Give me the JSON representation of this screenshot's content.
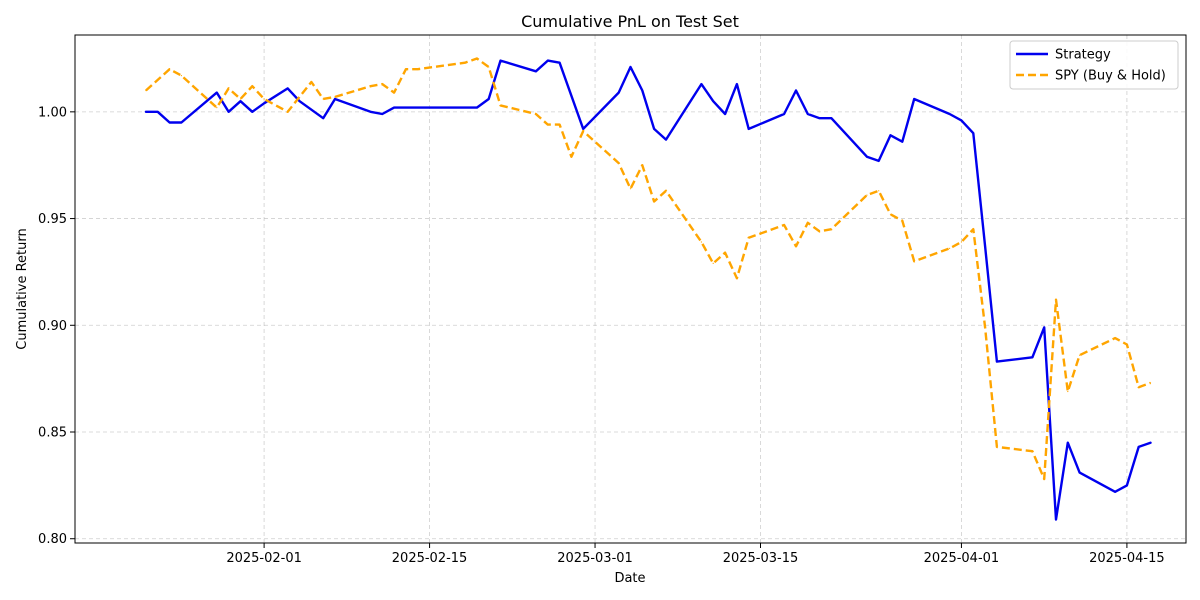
{
  "chart_data": {
    "type": "line",
    "title": "Cumulative PnL on Test Set",
    "xlabel": "Date",
    "ylabel": "Cumulative Return",
    "x_range": [
      "2025-01-16",
      "2025-04-20"
    ],
    "ylim": [
      0.798,
      1.036
    ],
    "x_ticks": [
      "2025-02-01",
      "2025-02-15",
      "2025-03-01",
      "2025-03-15",
      "2025-04-01",
      "2025-04-15"
    ],
    "y_ticks": [
      0.8,
      0.85,
      0.9,
      0.95,
      1.0
    ],
    "y_tick_labels": [
      "0.80",
      "0.85",
      "0.90",
      "0.95",
      "1.00"
    ],
    "grid": true,
    "legend_position": "top-right",
    "series": [
      {
        "name": "Strategy",
        "color": "#0000ee",
        "style": "solid",
        "points": [
          [
            "2025-01-22",
            1.0
          ],
          [
            "2025-01-23",
            1.0
          ],
          [
            "2025-01-24",
            0.995
          ],
          [
            "2025-01-25",
            0.995
          ],
          [
            "2025-01-28",
            1.009
          ],
          [
            "2025-01-29",
            1.0
          ],
          [
            "2025-01-30",
            1.005
          ],
          [
            "2025-01-31",
            1.0
          ],
          [
            "2025-02-01",
            1.004
          ],
          [
            "2025-02-03",
            1.011
          ],
          [
            "2025-02-04",
            1.005
          ],
          [
            "2025-02-06",
            0.997
          ],
          [
            "2025-02-07",
            1.006
          ],
          [
            "2025-02-10",
            1.0
          ],
          [
            "2025-02-11",
            0.999
          ],
          [
            "2025-02-12",
            1.002
          ],
          [
            "2025-02-19",
            1.002
          ],
          [
            "2025-02-20",
            1.006
          ],
          [
            "2025-02-21",
            1.024
          ],
          [
            "2025-02-24",
            1.019
          ],
          [
            "2025-02-25",
            1.024
          ],
          [
            "2025-02-26",
            1.023
          ],
          [
            "2025-02-28",
            0.992
          ],
          [
            "2025-03-03",
            1.009
          ],
          [
            "2025-03-04",
            1.021
          ],
          [
            "2025-03-05",
            1.01
          ],
          [
            "2025-03-06",
            0.992
          ],
          [
            "2025-03-07",
            0.987
          ],
          [
            "2025-03-10",
            1.013
          ],
          [
            "2025-03-11",
            1.005
          ],
          [
            "2025-03-12",
            0.999
          ],
          [
            "2025-03-13",
            1.013
          ],
          [
            "2025-03-14",
            0.992
          ],
          [
            "2025-03-17",
            0.999
          ],
          [
            "2025-03-18",
            1.01
          ],
          [
            "2025-03-19",
            0.999
          ],
          [
            "2025-03-20",
            0.997
          ],
          [
            "2025-03-21",
            0.997
          ],
          [
            "2025-03-24",
            0.979
          ],
          [
            "2025-03-25",
            0.977
          ],
          [
            "2025-03-26",
            0.989
          ],
          [
            "2025-03-27",
            0.986
          ],
          [
            "2025-03-28",
            1.006
          ],
          [
            "2025-03-31",
            0.999
          ],
          [
            "2025-04-01",
            0.996
          ],
          [
            "2025-04-02",
            0.99
          ],
          [
            "2025-04-03",
            0.937
          ],
          [
            "2025-04-04",
            0.883
          ],
          [
            "2025-04-07",
            0.885
          ],
          [
            "2025-04-08",
            0.899
          ],
          [
            "2025-04-09",
            0.809
          ],
          [
            "2025-04-10",
            0.845
          ],
          [
            "2025-04-11",
            0.831
          ],
          [
            "2025-04-14",
            0.822
          ],
          [
            "2025-04-15",
            0.825
          ],
          [
            "2025-04-16",
            0.843
          ],
          [
            "2025-04-17",
            0.845
          ]
        ]
      },
      {
        "name": "SPY (Buy & Hold)",
        "color": "#ffa500",
        "style": "dashed",
        "points": [
          [
            "2025-01-22",
            1.01
          ],
          [
            "2025-01-24",
            1.02
          ],
          [
            "2025-01-25",
            1.017
          ],
          [
            "2025-01-28",
            1.002
          ],
          [
            "2025-01-29",
            1.011
          ],
          [
            "2025-01-30",
            1.006
          ],
          [
            "2025-01-31",
            1.012
          ],
          [
            "2025-02-01",
            1.006
          ],
          [
            "2025-02-03",
            1.0
          ],
          [
            "2025-02-05",
            1.014
          ],
          [
            "2025-02-06",
            1.006
          ],
          [
            "2025-02-07",
            1.007
          ],
          [
            "2025-02-10",
            1.012
          ],
          [
            "2025-02-11",
            1.013
          ],
          [
            "2025-02-12",
            1.009
          ],
          [
            "2025-02-13",
            1.02
          ],
          [
            "2025-02-14",
            1.02
          ],
          [
            "2025-02-18",
            1.023
          ],
          [
            "2025-02-19",
            1.025
          ],
          [
            "2025-02-20",
            1.021
          ],
          [
            "2025-02-21",
            1.003
          ],
          [
            "2025-02-24",
            0.999
          ],
          [
            "2025-02-25",
            0.994
          ],
          [
            "2025-02-26",
            0.994
          ],
          [
            "2025-02-27",
            0.979
          ],
          [
            "2025-02-28",
            0.991
          ],
          [
            "2025-03-03",
            0.976
          ],
          [
            "2025-03-04",
            0.964
          ],
          [
            "2025-03-05",
            0.975
          ],
          [
            "2025-03-06",
            0.958
          ],
          [
            "2025-03-07",
            0.963
          ],
          [
            "2025-03-10",
            0.939
          ],
          [
            "2025-03-11",
            0.929
          ],
          [
            "2025-03-12",
            0.934
          ],
          [
            "2025-03-13",
            0.922
          ],
          [
            "2025-03-14",
            0.941
          ],
          [
            "2025-03-17",
            0.947
          ],
          [
            "2025-03-18",
            0.937
          ],
          [
            "2025-03-19",
            0.948
          ],
          [
            "2025-03-20",
            0.944
          ],
          [
            "2025-03-21",
            0.945
          ],
          [
            "2025-03-24",
            0.961
          ],
          [
            "2025-03-25",
            0.963
          ],
          [
            "2025-03-26",
            0.952
          ],
          [
            "2025-03-27",
            0.949
          ],
          [
            "2025-03-28",
            0.93
          ],
          [
            "2025-03-31",
            0.936
          ],
          [
            "2025-04-01",
            0.939
          ],
          [
            "2025-04-02",
            0.945
          ],
          [
            "2025-04-03",
            0.899
          ],
          [
            "2025-04-04",
            0.843
          ],
          [
            "2025-04-07",
            0.841
          ],
          [
            "2025-04-08",
            0.828
          ],
          [
            "2025-04-09",
            0.912
          ],
          [
            "2025-04-10",
            0.869
          ],
          [
            "2025-04-11",
            0.886
          ],
          [
            "2025-04-14",
            0.894
          ],
          [
            "2025-04-15",
            0.891
          ],
          [
            "2025-04-16",
            0.871
          ],
          [
            "2025-04-17",
            0.873
          ]
        ]
      }
    ]
  }
}
